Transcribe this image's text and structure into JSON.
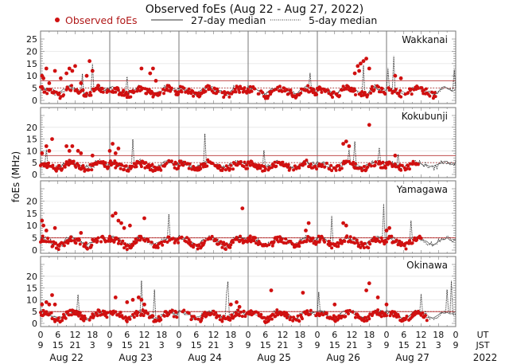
{
  "chart_data": {
    "type": "scatter",
    "title": "Observed foEs (Aug 22 - Aug 27, 2022)",
    "ylabel": "foEs (MHz)",
    "legend": {
      "placement": "top",
      "entries": [
        {
          "label": "Observed foEs",
          "style": "red-dot",
          "color": "#d01010"
        },
        {
          "label": "27-day median",
          "style": "solid-line",
          "color": "#333333"
        },
        {
          "label": "5-day median",
          "style": "dotted-line",
          "color": "#333333"
        }
      ]
    },
    "xlim_hours_ut": [
      0,
      144
    ],
    "x_ticks_ut": [
      "0",
      "6",
      "12",
      "18",
      "0",
      "6",
      "12",
      "18",
      "0",
      "6",
      "12",
      "18",
      "0",
      "6",
      "12",
      "18",
      "0",
      "6",
      "12",
      "18",
      "0",
      "6",
      "12",
      "18",
      "0"
    ],
    "x_ticks_jst": [
      "9",
      "15",
      "21",
      "3",
      "9",
      "15",
      "21",
      "3",
      "9",
      "15",
      "21",
      "3",
      "9",
      "15",
      "21",
      "3",
      "9",
      "15",
      "21",
      "3",
      "9",
      "15",
      "21",
      "3",
      "9"
    ],
    "x_row_labels": {
      "ut": "UT",
      "jst": "JST"
    },
    "days": [
      "Aug 22",
      "Aug 23",
      "Aug 24",
      "Aug 25",
      "Aug 26",
      "Aug 27"
    ],
    "year": "2022",
    "grid": true,
    "panels": [
      {
        "station": "Wakkanai",
        "ylim": [
          0,
          25
        ],
        "yticks": [
          0,
          5,
          10,
          15,
          20,
          25
        ],
        "red_threshold_mhz": 8,
        "median5_level_mhz": 5,
        "baseline_profile_mhz": [
          5,
          5,
          4.5,
          4,
          3.5,
          3,
          2.5,
          3,
          4,
          5,
          5.5,
          5,
          4.5,
          4,
          3.5,
          3,
          2.5,
          3,
          4,
          5,
          5.5,
          5,
          4.5,
          4
        ],
        "observed_peaks": [
          [
            0.5,
            10
          ],
          [
            1,
            9
          ],
          [
            2,
            13
          ],
          [
            3,
            7
          ],
          [
            5,
            12
          ],
          [
            7,
            9
          ],
          [
            9,
            11
          ],
          [
            10,
            13
          ],
          [
            11,
            12
          ],
          [
            12,
            14
          ],
          [
            14,
            7
          ],
          [
            16,
            10
          ],
          [
            17,
            16
          ],
          [
            18,
            12
          ],
          [
            20,
            6
          ],
          [
            35,
            13
          ],
          [
            38,
            11
          ],
          [
            39,
            13
          ],
          [
            40,
            8
          ],
          [
            110,
            14
          ],
          [
            111,
            15
          ],
          [
            112,
            16
          ],
          [
            113,
            17
          ],
          [
            110.5,
            12
          ],
          [
            109,
            11
          ],
          [
            114,
            13
          ],
          [
            123,
            10
          ],
          [
            125,
            9
          ]
        ],
        "median27_range_mhz": [
          2,
          9
        ],
        "observed_end_hours_ut": 137
      },
      {
        "station": "Kokubunji",
        "ylim": [
          0,
          25
        ],
        "yticks": [
          0,
          5,
          10,
          15,
          20
        ],
        "red_threshold_mhz": 8,
        "median5_level_mhz": 5,
        "baseline_profile_mhz": [
          5,
          5,
          4.5,
          4,
          3.5,
          3,
          3,
          3.5,
          4,
          5,
          5.5,
          5,
          4.5,
          4,
          3.5,
          3,
          3,
          3.5,
          4,
          5,
          5.5,
          5,
          4.5,
          4
        ],
        "observed_peaks": [
          [
            0.5,
            9
          ],
          [
            2,
            12
          ],
          [
            3,
            10
          ],
          [
            4,
            15
          ],
          [
            9,
            12
          ],
          [
            10,
            10
          ],
          [
            11,
            12
          ],
          [
            13,
            10
          ],
          [
            14,
            9
          ],
          [
            18,
            8
          ],
          [
            24,
            10
          ],
          [
            25,
            13
          ],
          [
            26,
            9
          ],
          [
            27,
            11
          ],
          [
            105,
            13
          ],
          [
            106,
            14
          ],
          [
            107,
            12
          ],
          [
            114,
            21
          ],
          [
            123,
            8
          ]
        ],
        "median27_range_mhz": [
          3,
          7
        ],
        "observed_end_hours_ut": 131
      },
      {
        "station": "Yamagawa",
        "ylim": [
          0,
          25
        ],
        "yticks": [
          0,
          5,
          10,
          15,
          20
        ],
        "red_threshold_mhz": 5,
        "median5_level_mhz": 5,
        "baseline_profile_mhz": [
          5,
          5,
          4.5,
          4,
          3,
          2.5,
          2,
          2.5,
          3.5,
          4.5,
          5,
          5,
          4.5,
          4,
          3,
          2.5,
          2,
          2.5,
          3.5,
          4.5,
          5,
          5,
          4.5,
          4
        ],
        "observed_peaks": [
          [
            0.5,
            12
          ],
          [
            1,
            10
          ],
          [
            2,
            8
          ],
          [
            5,
            9
          ],
          [
            14,
            7
          ],
          [
            25,
            14
          ],
          [
            26,
            15
          ],
          [
            27,
            12
          ],
          [
            28,
            11
          ],
          [
            29,
            9
          ],
          [
            31,
            10
          ],
          [
            36,
            13
          ],
          [
            70,
            17
          ],
          [
            92,
            8
          ],
          [
            93,
            11
          ],
          [
            105,
            11
          ],
          [
            106,
            10
          ],
          [
            120,
            8
          ],
          [
            121,
            9
          ]
        ],
        "median27_range_mhz": [
          2,
          6
        ],
        "observed_end_hours_ut": 132
      },
      {
        "station": "Okinawa",
        "ylim": [
          0,
          25
        ],
        "yticks": [
          0,
          5,
          10,
          15,
          20
        ],
        "red_threshold_mhz": 5,
        "median5_level_mhz": 5,
        "baseline_profile_mhz": [
          5,
          5,
          4.5,
          4,
          3,
          2.5,
          2,
          2.5,
          3.5,
          4.5,
          5,
          5,
          4.5,
          4,
          3,
          2.5,
          2,
          2.5,
          3.5,
          4.5,
          5,
          5,
          4.5,
          4
        ],
        "observed_peaks": [
          [
            0.5,
            8
          ],
          [
            2,
            9
          ],
          [
            3,
            8
          ],
          [
            4,
            12
          ],
          [
            5,
            8
          ],
          [
            26,
            11
          ],
          [
            30,
            9
          ],
          [
            32,
            10
          ],
          [
            34,
            11
          ],
          [
            35,
            10
          ],
          [
            36,
            8
          ],
          [
            66,
            8
          ],
          [
            68,
            9
          ],
          [
            69,
            7
          ],
          [
            80,
            14
          ],
          [
            91,
            13
          ],
          [
            102,
            8
          ],
          [
            113,
            14
          ],
          [
            114,
            17
          ],
          [
            117,
            11
          ],
          [
            120,
            8
          ]
        ],
        "median27_range_mhz": [
          2,
          6
        ],
        "observed_end_hours_ut": 134
      }
    ]
  }
}
